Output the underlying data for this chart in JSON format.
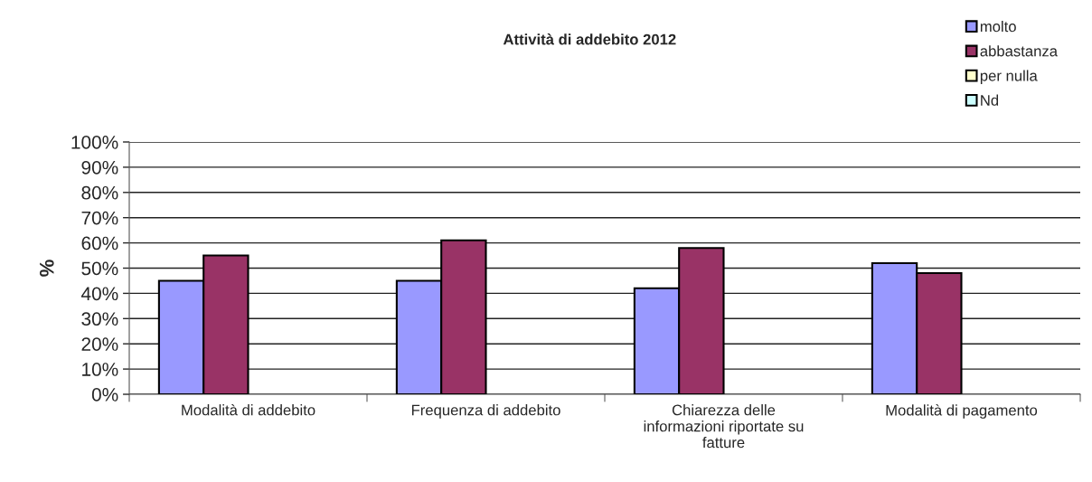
{
  "chart_data": {
    "type": "bar",
    "title": "Attività di addebito 2012",
    "ylabel": "%",
    "categories": [
      "Modalità di addebito",
      "Frequenza di addebito",
      "Chiarezza delle\ninformazioni riportate su\nfatture",
      "Modalità di pagamento"
    ],
    "series": [
      {
        "name": "molto",
        "color": "#9999ff",
        "values": [
          45,
          45,
          42,
          52
        ]
      },
      {
        "name": "abbastanza",
        "color": "#993366",
        "values": [
          55,
          61,
          58,
          48
        ]
      },
      {
        "name": "per nulla",
        "color": "#ffffcc",
        "values": [
          null,
          null,
          null,
          null
        ]
      },
      {
        "name": "Nd",
        "color": "#ccffff",
        "values": [
          null,
          null,
          null,
          null
        ]
      }
    ],
    "ylim": [
      0,
      100
    ],
    "yticks": [
      {
        "value": 0,
        "label": "0%"
      },
      {
        "value": 10,
        "label": "10%"
      },
      {
        "value": 20,
        "label": "20%"
      },
      {
        "value": 30,
        "label": "30%"
      },
      {
        "value": 40,
        "label": "40%"
      },
      {
        "value": 50,
        "label": "50%"
      },
      {
        "value": 60,
        "label": "60%"
      },
      {
        "value": 70,
        "label": "70%"
      },
      {
        "value": 80,
        "label": "80%"
      },
      {
        "value": 90,
        "label": "90%"
      },
      {
        "value": 100,
        "label": "100%"
      }
    ],
    "grid": "y",
    "legend": "top right"
  }
}
